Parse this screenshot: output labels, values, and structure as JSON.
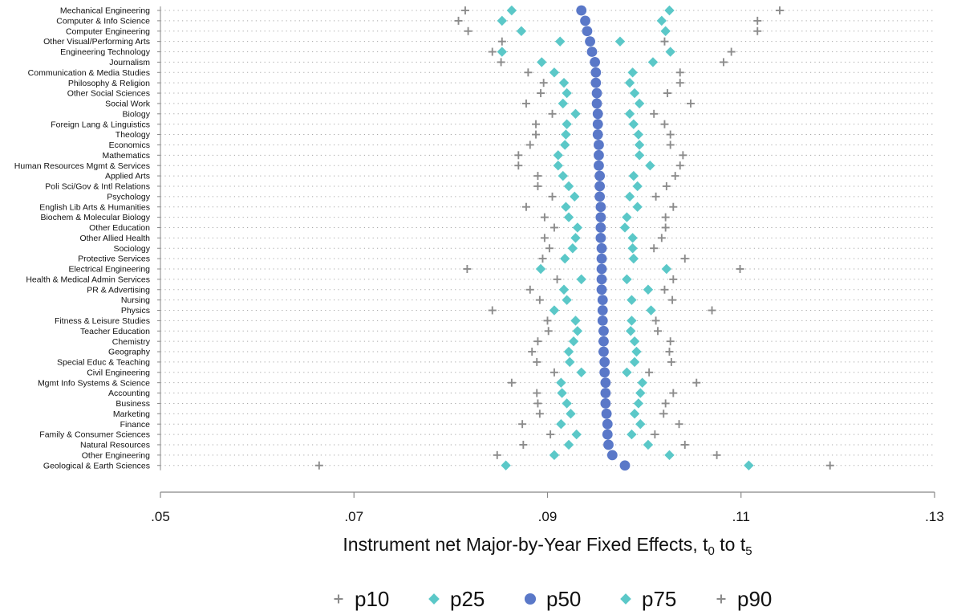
{
  "chart_data": {
    "type": "scatter",
    "xlabel": "Instrument net Major-by-Year Fixed Effects, t",
    "xlabel_sub1": "0",
    "xlabel_mid": " to t",
    "xlabel_sub2": "5",
    "xlim": [
      0.05,
      0.13
    ],
    "xticks": [
      0.05,
      0.07,
      0.09,
      0.11,
      0.13
    ],
    "xtick_labels": [
      ".05",
      ".07",
      ".09",
      ".11",
      ".13"
    ],
    "grid": "dotted horizontal",
    "legend_position": "bottom",
    "categories": [
      "Mechanical Engineering",
      "Computer & Info Science",
      "Computer Engineering",
      "Other Visual/Performing Arts",
      "Engineering Technology",
      "Journalism",
      "Communication & Media Studies",
      "Philosophy & Religion",
      "Other Social Sciences",
      "Social Work",
      "Biology",
      "Foreign Lang & Linguistics",
      "Theology",
      "Economics",
      "Mathematics",
      "Human Resources Mgmt & Services",
      "Applied Arts",
      "Poli Sci/Gov & Intl Relations",
      "Psychology",
      "English Lib Arts & Humanities",
      "Biochem & Molecular Biology",
      "Other Education",
      "Other Allied Health",
      "Sociology",
      "Protective Services",
      "Electrical Engineering",
      "Health & Medical Admin Services",
      "PR & Advertising",
      "Nursing",
      "Physics",
      "Fitness & Leisure Studies",
      "Teacher Education",
      "Chemistry",
      "Geography",
      "Special Educ & Teaching",
      "Civil Engineering",
      "Mgmt Info Systems & Science",
      "Accounting",
      "Business",
      "Marketing",
      "Finance",
      "Family & Consumer Sciences",
      "Natural Resources",
      "Other Engineering",
      "Geological & Earth Sciences"
    ],
    "series": [
      {
        "name": "p10",
        "marker": "plus",
        "color": "#8c8c8c",
        "values": [
          0.0815,
          0.0808,
          0.0818,
          0.0853,
          0.0843,
          0.0852,
          0.088,
          0.0896,
          0.0893,
          0.0878,
          0.0905,
          0.0888,
          0.0888,
          0.0882,
          0.087,
          0.087,
          0.089,
          0.089,
          0.0905,
          0.0878,
          0.0897,
          0.0907,
          0.0897,
          0.0902,
          0.0895,
          0.0817,
          0.091,
          0.0882,
          0.0892,
          0.0843,
          0.09,
          0.0901,
          0.089,
          0.0884,
          0.0889,
          0.0907,
          0.0863,
          0.0889,
          0.089,
          0.0892,
          0.0874,
          0.0903,
          0.0875,
          0.0848,
          0.0664
        ]
      },
      {
        "name": "p25",
        "marker": "diamond",
        "color": "#5bc8c8",
        "values": [
          0.0863,
          0.0853,
          0.0873,
          0.0913,
          0.0853,
          0.0894,
          0.0907,
          0.0917,
          0.092,
          0.0916,
          0.0929,
          0.092,
          0.0919,
          0.0918,
          0.0911,
          0.0911,
          0.0916,
          0.0922,
          0.0928,
          0.0919,
          0.0922,
          0.0931,
          0.0929,
          0.0926,
          0.0918,
          0.0893,
          0.0935,
          0.0917,
          0.092,
          0.0907,
          0.0929,
          0.0931,
          0.0927,
          0.0922,
          0.0923,
          0.0935,
          0.0914,
          0.0915,
          0.092,
          0.0924,
          0.0914,
          0.093,
          0.0922,
          0.0907,
          0.0857
        ]
      },
      {
        "name": "p50",
        "marker": "circle",
        "color": "#5a78c8",
        "values": [
          0.0935,
          0.0939,
          0.0941,
          0.0944,
          0.0946,
          0.0949,
          0.095,
          0.095,
          0.0951,
          0.0951,
          0.0952,
          0.0952,
          0.0952,
          0.0953,
          0.0953,
          0.0953,
          0.0954,
          0.0954,
          0.0954,
          0.0955,
          0.0955,
          0.0955,
          0.0955,
          0.0956,
          0.0956,
          0.0956,
          0.0956,
          0.0956,
          0.0957,
          0.0957,
          0.0957,
          0.0958,
          0.0958,
          0.0958,
          0.0959,
          0.0959,
          0.096,
          0.096,
          0.096,
          0.0961,
          0.0962,
          0.0962,
          0.0963,
          0.0967,
          0.098
        ]
      },
      {
        "name": "p75",
        "marker": "diamond",
        "color": "#5bc8c8",
        "values": [
          0.1026,
          0.1018,
          0.1022,
          0.0975,
          0.1027,
          0.1009,
          0.0988,
          0.0985,
          0.099,
          0.0995,
          0.0985,
          0.0989,
          0.0994,
          0.0995,
          0.0995,
          0.1006,
          0.0989,
          0.0993,
          0.0985,
          0.0993,
          0.0982,
          0.098,
          0.0988,
          0.0988,
          0.0989,
          0.1023,
          0.0982,
          0.1004,
          0.0987,
          0.1007,
          0.0987,
          0.0986,
          0.099,
          0.0992,
          0.099,
          0.0982,
          0.0998,
          0.0996,
          0.0994,
          0.099,
          0.0996,
          0.0987,
          0.1004,
          0.1026,
          0.1108
        ]
      },
      {
        "name": "p90",
        "marker": "plus",
        "color": "#8c8c8c",
        "values": [
          0.114,
          0.1117,
          0.1117,
          0.1021,
          0.109,
          0.1082,
          0.1037,
          0.1037,
          0.1024,
          0.1048,
          0.101,
          0.1021,
          0.1027,
          0.1027,
          0.104,
          0.1037,
          0.1032,
          0.1023,
          0.1012,
          0.103,
          0.1022,
          0.1022,
          0.1018,
          0.101,
          0.1042,
          0.1099,
          0.103,
          0.1021,
          0.1029,
          0.107,
          0.1012,
          0.1014,
          0.1027,
          0.1026,
          0.1028,
          0.1005,
          0.1054,
          0.103,
          0.1022,
          0.102,
          0.1036,
          0.1011,
          0.1042,
          0.1075,
          0.1192
        ]
      }
    ]
  }
}
